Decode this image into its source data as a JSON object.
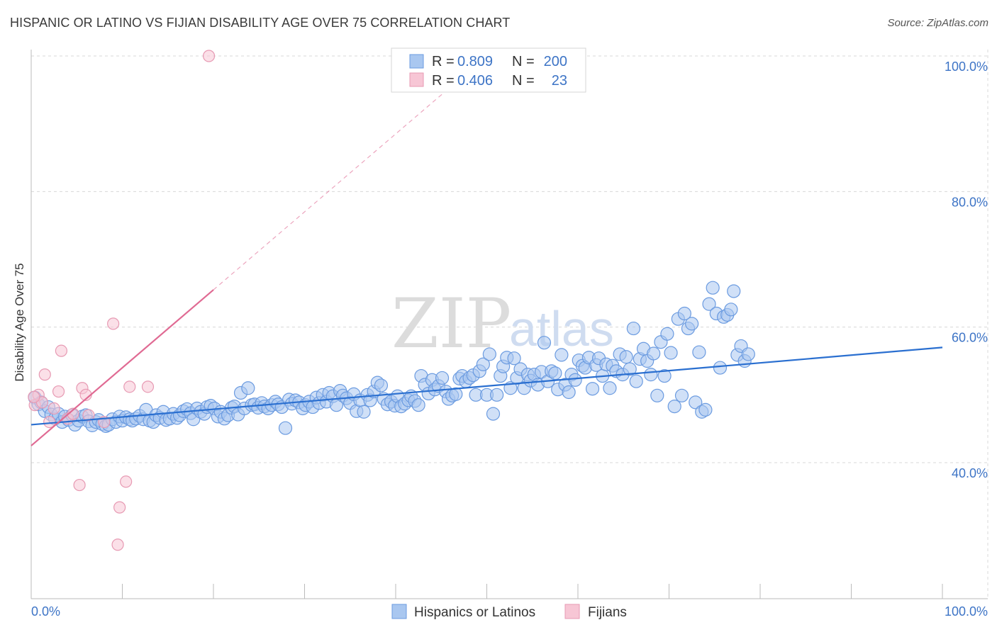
{
  "header": {
    "title": "HISPANIC OR LATINO VS FIJIAN DISABILITY AGE OVER 75 CORRELATION CHART",
    "source": "Source: ZipAtlas.com"
  },
  "watermark": {
    "zip": "ZIP",
    "atlas": "atlas"
  },
  "legend": {
    "rows": [
      {
        "r_label": "R =",
        "r_value": "0.809",
        "n_label": "N =",
        "n_value": "200",
        "color": "#7aa6e6"
      },
      {
        "r_label": "R =",
        "r_value": "0.406",
        "n_label": "N =",
        "n_value": "23",
        "color": "#f0a0bb"
      }
    ]
  },
  "colors": {
    "blue_fill": "#a9c7f0",
    "blue_stroke": "#6b9be0",
    "blue_line": "#2a6fd0",
    "pink_fill": "#f7c6d5",
    "pink_stroke": "#e79ab3",
    "pink_line": "#e06a93",
    "grid": "#d8d8d8",
    "tick_text": "#3d74c6"
  },
  "chart_data": {
    "type": "scatter",
    "title": "HISPANIC OR LATINO VS FIJIAN DISABILITY AGE OVER 75 CORRELATION CHART",
    "xlabel": "",
    "ylabel": "Disability Age Over 75",
    "xlim": [
      0,
      100
    ],
    "ylim": [
      20,
      102
    ],
    "x_tick_labels": [
      "0.0%",
      "100.0%"
    ],
    "y_ticks": [
      40,
      60,
      80,
      100
    ],
    "y_tick_labels": [
      "40.0%",
      "60.0%",
      "80.0%",
      "100.0%"
    ],
    "grid": true,
    "legend_position": "top-center",
    "series": [
      {
        "name": "Hispanics or Latinos",
        "color": "#a9c7f0",
        "trend": {
          "x0": 0,
          "y0": 45.6,
          "x1": 100,
          "y1": 57.0,
          "dashed_extension": false
        },
        "points": [
          [
            0.4,
            49.6
          ],
          [
            0.8,
            48.6
          ],
          [
            1.1,
            48.9
          ],
          [
            1.5,
            47.6
          ],
          [
            1.9,
            48.2
          ],
          [
            2.2,
            47.1
          ],
          [
            2.6,
            46.5
          ],
          [
            3.0,
            47.2
          ],
          [
            3.4,
            46.0
          ],
          [
            3.7,
            46.8
          ],
          [
            4.1,
            46.3
          ],
          [
            4.5,
            47.0
          ],
          [
            4.8,
            45.6
          ],
          [
            5.2,
            46.2
          ],
          [
            5.6,
            46.8
          ],
          [
            6.0,
            47.0
          ],
          [
            6.3,
            46.1
          ],
          [
            6.7,
            45.5
          ],
          [
            7.1,
            46.0
          ],
          [
            7.4,
            46.3
          ],
          [
            7.8,
            45.7
          ],
          [
            8.2,
            45.4
          ],
          [
            8.5,
            45.6
          ],
          [
            8.9,
            46.4
          ],
          [
            9.3,
            46.0
          ],
          [
            9.7,
            46.8
          ],
          [
            10.0,
            46.2
          ],
          [
            10.4,
            46.7
          ],
          [
            10.8,
            46.4
          ],
          [
            11.1,
            46.2
          ],
          [
            11.5,
            46.5
          ],
          [
            11.9,
            46.9
          ],
          [
            12.3,
            46.4
          ],
          [
            12.6,
            47.8
          ],
          [
            13.0,
            46.2
          ],
          [
            13.4,
            46.0
          ],
          [
            13.7,
            47.0
          ],
          [
            14.1,
            46.6
          ],
          [
            14.5,
            47.5
          ],
          [
            14.8,
            46.3
          ],
          [
            15.2,
            46.5
          ],
          [
            15.6,
            47.2
          ],
          [
            16.0,
            46.6
          ],
          [
            16.3,
            47.0
          ],
          [
            16.7,
            47.6
          ],
          [
            17.1,
            47.9
          ],
          [
            17.5,
            47.3
          ],
          [
            17.8,
            46.4
          ],
          [
            18.2,
            48.0
          ],
          [
            18.6,
            47.5
          ],
          [
            19.0,
            47.2
          ],
          [
            19.3,
            48.2
          ],
          [
            19.7,
            48.4
          ],
          [
            20.1,
            48.0
          ],
          [
            20.5,
            46.8
          ],
          [
            20.8,
            47.5
          ],
          [
            21.2,
            46.5
          ],
          [
            21.6,
            47.0
          ],
          [
            22.0,
            48.1
          ],
          [
            22.3,
            48.3
          ],
          [
            22.7,
            47.1
          ],
          [
            23.0,
            50.3
          ],
          [
            23.4,
            48.0
          ],
          [
            23.8,
            51.0
          ],
          [
            24.2,
            48.5
          ],
          [
            24.5,
            48.6
          ],
          [
            24.9,
            48.1
          ],
          [
            25.3,
            48.8
          ],
          [
            25.6,
            48.3
          ],
          [
            26.0,
            48.0
          ],
          [
            26.4,
            48.5
          ],
          [
            26.8,
            49.0
          ],
          [
            27.1,
            48.6
          ],
          [
            27.5,
            48.2
          ],
          [
            27.9,
            45.1
          ],
          [
            28.3,
            49.3
          ],
          [
            28.6,
            48.7
          ],
          [
            29.0,
            49.2
          ],
          [
            29.4,
            48.9
          ],
          [
            29.8,
            48.0
          ],
          [
            30.1,
            48.5
          ],
          [
            30.5,
            49.0
          ],
          [
            30.9,
            48.2
          ],
          [
            31.3,
            49.6
          ],
          [
            31.6,
            48.8
          ],
          [
            32.0,
            50.0
          ],
          [
            32.4,
            49.0
          ],
          [
            32.7,
            50.3
          ],
          [
            33.1,
            49.8
          ],
          [
            33.5,
            48.5
          ],
          [
            33.9,
            50.6
          ],
          [
            34.2,
            49.9
          ],
          [
            34.6,
            49.5
          ],
          [
            35.0,
            48.8
          ],
          [
            35.4,
            50.1
          ],
          [
            35.7,
            47.6
          ],
          [
            36.1,
            49.2
          ],
          [
            36.5,
            47.5
          ],
          [
            36.9,
            50.0
          ],
          [
            37.2,
            49.2
          ],
          [
            37.6,
            50.5
          ],
          [
            38.0,
            51.8
          ],
          [
            38.4,
            51.4
          ],
          [
            38.7,
            49.4
          ],
          [
            39.1,
            48.6
          ],
          [
            39.5,
            49.0
          ],
          [
            39.9,
            48.4
          ],
          [
            40.2,
            49.8
          ],
          [
            40.6,
            48.3
          ],
          [
            41.0,
            48.7
          ],
          [
            41.4,
            49.2
          ],
          [
            41.7,
            49.8
          ],
          [
            42.1,
            49.1
          ],
          [
            42.5,
            48.5
          ],
          [
            42.8,
            52.8
          ],
          [
            43.2,
            51.5
          ],
          [
            43.6,
            50.2
          ],
          [
            44.0,
            52.2
          ],
          [
            44.3,
            50.8
          ],
          [
            44.7,
            51.3
          ],
          [
            45.1,
            52.5
          ],
          [
            45.5,
            50.5
          ],
          [
            45.8,
            49.4
          ],
          [
            46.2,
            49.9
          ],
          [
            46.6,
            50.1
          ],
          [
            47.0,
            52.4
          ],
          [
            47.3,
            52.8
          ],
          [
            47.7,
            52.0
          ],
          [
            48.1,
            52.5
          ],
          [
            48.5,
            52.9
          ],
          [
            48.8,
            50.0
          ],
          [
            49.2,
            53.5
          ],
          [
            49.6,
            54.5
          ],
          [
            50.0,
            50.0
          ],
          [
            50.3,
            56.0
          ],
          [
            50.7,
            47.2
          ],
          [
            51.1,
            50.0
          ],
          [
            51.5,
            52.8
          ],
          [
            51.8,
            54.2
          ],
          [
            52.2,
            55.5
          ],
          [
            52.6,
            51.0
          ],
          [
            53.0,
            55.4
          ],
          [
            53.3,
            52.5
          ],
          [
            53.7,
            53.8
          ],
          [
            54.1,
            51.0
          ],
          [
            54.5,
            53.0
          ],
          [
            54.8,
            52.1
          ],
          [
            55.2,
            53.0
          ],
          [
            55.6,
            51.5
          ],
          [
            56.0,
            53.4
          ],
          [
            56.3,
            57.7
          ],
          [
            56.7,
            52.0
          ],
          [
            57.1,
            53.5
          ],
          [
            57.5,
            53.2
          ],
          [
            57.8,
            50.8
          ],
          [
            58.2,
            55.9
          ],
          [
            58.6,
            51.5
          ],
          [
            59.0,
            50.4
          ],
          [
            59.3,
            53.0
          ],
          [
            59.7,
            52.2
          ],
          [
            60.1,
            55.1
          ],
          [
            60.5,
            54.3
          ],
          [
            60.8,
            54.0
          ],
          [
            61.2,
            55.5
          ],
          [
            61.6,
            50.9
          ],
          [
            62.0,
            54.4
          ],
          [
            62.3,
            55.4
          ],
          [
            62.7,
            52.8
          ],
          [
            63.1,
            54.5
          ],
          [
            63.5,
            51.0
          ],
          [
            63.8,
            54.3
          ],
          [
            64.2,
            53.5
          ],
          [
            64.6,
            56.0
          ],
          [
            64.9,
            53.0
          ],
          [
            65.3,
            55.6
          ],
          [
            65.7,
            53.8
          ],
          [
            66.1,
            59.8
          ],
          [
            66.4,
            52.0
          ],
          [
            66.8,
            55.3
          ],
          [
            67.2,
            56.8
          ],
          [
            67.6,
            55.0
          ],
          [
            68.0,
            53.0
          ],
          [
            68.3,
            56.1
          ],
          [
            68.7,
            49.9
          ],
          [
            69.1,
            57.8
          ],
          [
            69.5,
            52.8
          ],
          [
            69.8,
            59.0
          ],
          [
            70.2,
            56.2
          ],
          [
            70.6,
            48.3
          ],
          [
            71.0,
            61.2
          ],
          [
            71.4,
            49.9
          ],
          [
            71.7,
            62.0
          ],
          [
            72.1,
            59.8
          ],
          [
            72.5,
            60.5
          ],
          [
            72.9,
            48.9
          ],
          [
            73.3,
            56.3
          ],
          [
            73.6,
            47.5
          ],
          [
            74.0,
            47.8
          ],
          [
            74.4,
            63.4
          ],
          [
            74.8,
            65.8
          ],
          [
            75.2,
            62.0
          ],
          [
            75.6,
            54.0
          ],
          [
            76.0,
            61.5
          ],
          [
            76.4,
            61.8
          ],
          [
            76.8,
            62.6
          ],
          [
            77.1,
            65.3
          ],
          [
            77.5,
            55.9
          ],
          [
            77.9,
            57.2
          ],
          [
            78.3,
            55.0
          ],
          [
            78.7,
            56.0
          ]
        ]
      },
      {
        "name": "Fijians",
        "color": "#f7c6d5",
        "trend": {
          "x0": 0,
          "y0": 42.5,
          "x1": 20,
          "y1": 65.5,
          "dashed_extension": true,
          "x_ext": 100,
          "y_ext": 157
        },
        "points": [
          [
            0.4,
            48.5
          ],
          [
            0.8,
            50.0
          ],
          [
            1.2,
            48.9
          ],
          [
            1.5,
            53.0
          ],
          [
            2.0,
            46.0
          ],
          [
            2.5,
            48.0
          ],
          [
            3.0,
            50.5
          ],
          [
            3.3,
            56.5
          ],
          [
            4.0,
            46.5
          ],
          [
            4.6,
            47.2
          ],
          [
            5.3,
            36.7
          ],
          [
            5.6,
            51.0
          ],
          [
            6.0,
            50.0
          ],
          [
            6.3,
            47.0
          ],
          [
            8.0,
            46.0
          ],
          [
            9.0,
            60.5
          ],
          [
            9.5,
            27.9
          ],
          [
            9.7,
            33.4
          ],
          [
            10.4,
            37.2
          ],
          [
            10.8,
            51.2
          ],
          [
            12.8,
            51.2
          ],
          [
            19.5,
            100.0
          ],
          [
            0.3,
            49.7
          ]
        ]
      }
    ]
  },
  "bottom_legend": {
    "items": [
      {
        "label": "Hispanics or Latinos"
      },
      {
        "label": "Fijians"
      }
    ]
  }
}
